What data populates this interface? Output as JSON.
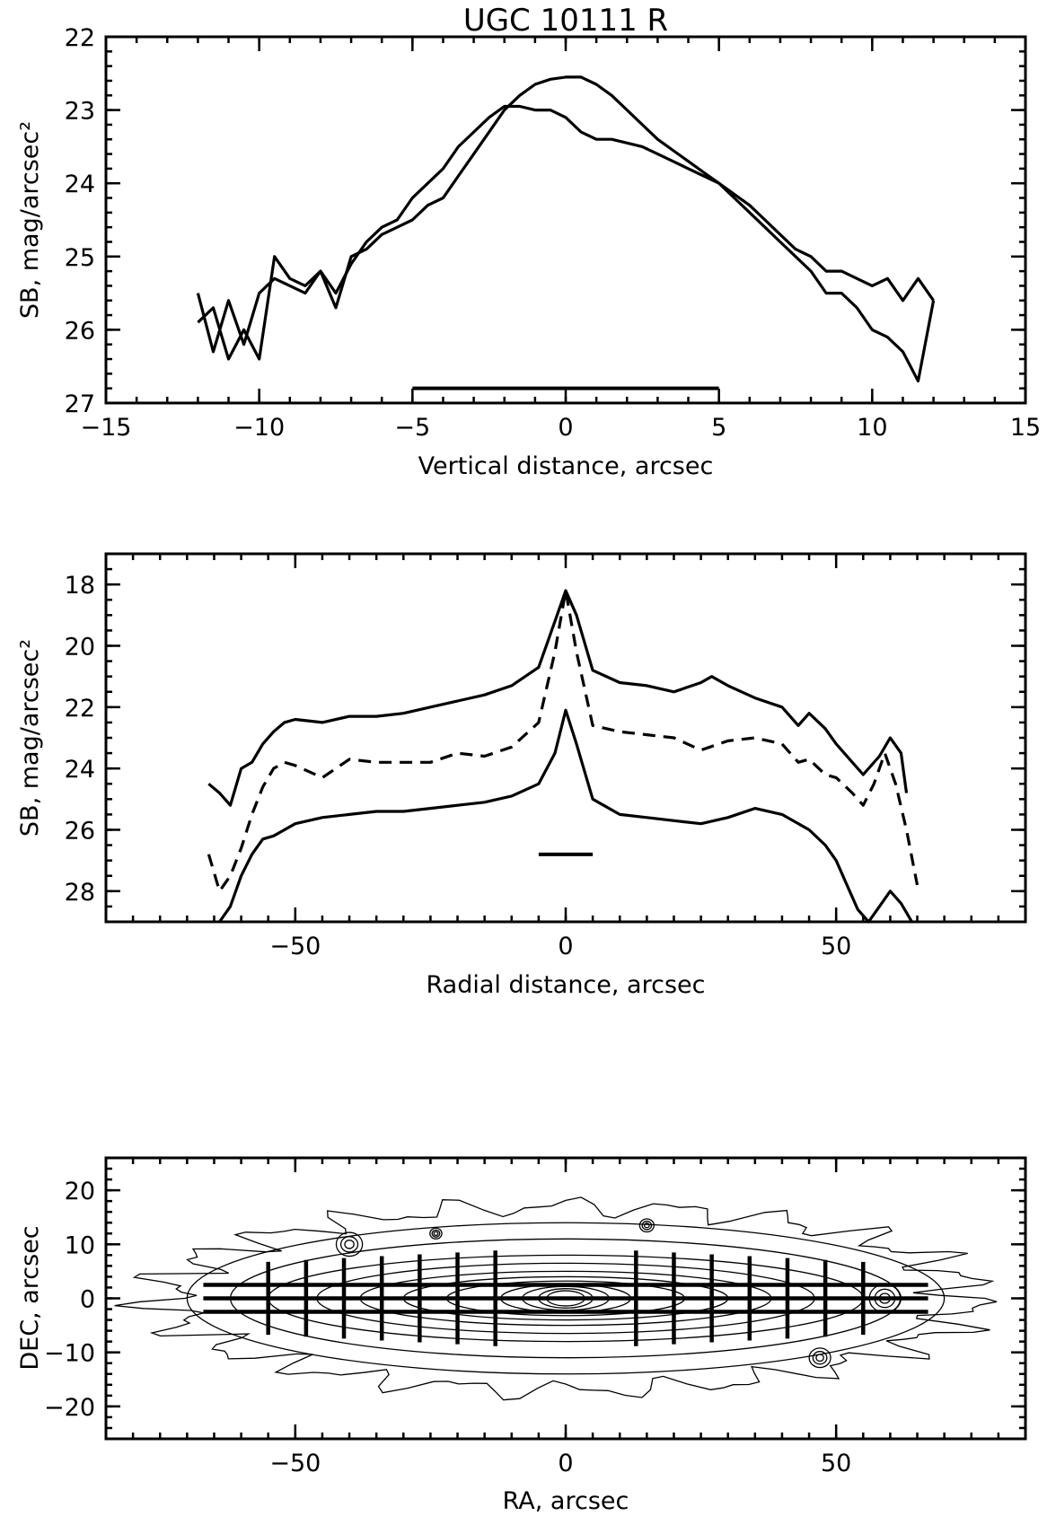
{
  "figure": {
    "title": "UGC 10111 R"
  },
  "chart_data": [
    {
      "type": "line",
      "xlabel": "Vertical distance, arcsec",
      "ylabel": "SB, mag/arcsec²",
      "xlim": [
        -15,
        15
      ],
      "ylim": [
        27,
        22
      ],
      "y_inverted": true,
      "xticks": [
        -15,
        -10,
        -5,
        0,
        5,
        10,
        15
      ],
      "yticks": [
        22,
        23,
        24,
        25,
        26,
        27
      ],
      "series": [
        {
          "style": "solid",
          "x": [
            -12.0,
            -11.5,
            -11.0,
            -10.5,
            -10.0,
            -9.5,
            -9.0,
            -8.5,
            -8.0,
            -7.5,
            -7.0,
            -6.5,
            -6.0,
            -5.5,
            -5.0,
            -4.5,
            -4.0,
            -3.5,
            -3.0,
            -2.5,
            -2.0,
            -1.5,
            -1.0,
            -0.5,
            0.0,
            0.5,
            1.0,
            1.5,
            2.0,
            2.5,
            3.0,
            3.5,
            4.0,
            4.5,
            5.0,
            5.5,
            6.0,
            6.5,
            7.0,
            7.5,
            8.0,
            8.5,
            9.0,
            9.5,
            10.0,
            10.5,
            11.0,
            11.5,
            12.0
          ],
          "y": [
            25.5,
            26.3,
            25.6,
            26.2,
            25.5,
            25.3,
            25.4,
            25.5,
            25.2,
            25.5,
            25.1,
            24.8,
            24.6,
            24.5,
            24.2,
            24.0,
            23.8,
            23.5,
            23.3,
            23.1,
            22.95,
            22.95,
            23.0,
            23.0,
            23.1,
            23.3,
            23.4,
            23.4,
            23.45,
            23.5,
            23.6,
            23.7,
            23.8,
            23.9,
            24.0,
            24.15,
            24.3,
            24.5,
            24.7,
            24.9,
            25.0,
            25.2,
            25.2,
            25.3,
            25.4,
            25.3,
            25.6,
            25.3,
            25.6
          ]
        },
        {
          "style": "solid",
          "x": [
            -12.0,
            -11.5,
            -11.0,
            -10.5,
            -10.0,
            -9.5,
            -9.0,
            -8.5,
            -8.0,
            -7.5,
            -7.0,
            -6.5,
            -6.0,
            -5.5,
            -5.0,
            -4.5,
            -4.0,
            -3.5,
            -3.0,
            -2.5,
            -2.0,
            -1.5,
            -1.0,
            -0.5,
            0.0,
            0.5,
            1.0,
            1.5,
            2.0,
            2.5,
            3.0,
            3.5,
            4.0,
            4.5,
            5.0,
            5.5,
            6.0,
            6.5,
            7.0,
            7.5,
            8.0,
            8.5,
            9.0,
            9.5,
            10.0,
            10.5,
            11.0,
            11.5,
            12.0
          ],
          "y": [
            25.9,
            25.7,
            26.4,
            26.0,
            26.4,
            25.0,
            25.3,
            25.4,
            25.2,
            25.7,
            25.0,
            24.9,
            24.7,
            24.6,
            24.5,
            24.3,
            24.2,
            23.9,
            23.6,
            23.3,
            23.0,
            22.8,
            22.65,
            22.58,
            22.55,
            22.55,
            22.65,
            22.8,
            23.0,
            23.2,
            23.4,
            23.55,
            23.7,
            23.85,
            24.0,
            24.2,
            24.4,
            24.6,
            24.8,
            25.0,
            25.2,
            25.5,
            25.5,
            25.7,
            26.0,
            26.1,
            26.3,
            26.7,
            25.6
          ]
        }
      ],
      "annotations": [
        {
          "kind": "horizontal-bar",
          "x": [
            -5,
            5
          ],
          "y": 26.8
        }
      ]
    },
    {
      "type": "line",
      "xlabel": "Radial distance, arcsec",
      "ylabel": "SB, mag/arcsec²",
      "xlim": [
        -85,
        85
      ],
      "ylim": [
        29,
        17
      ],
      "y_inverted": true,
      "xticks": [
        -50,
        0,
        50
      ],
      "yticks": [
        18,
        20,
        22,
        24,
        26,
        28
      ],
      "series": [
        {
          "style": "solid",
          "x": [
            -66,
            -64,
            -62,
            -60,
            -58,
            -56,
            -54,
            -52,
            -50,
            -45,
            -40,
            -35,
            -30,
            -25,
            -20,
            -15,
            -10,
            -5,
            -2,
            0,
            2,
            5,
            10,
            15,
            20,
            25,
            27,
            30,
            35,
            40,
            43,
            45,
            48,
            50,
            53,
            55,
            58,
            60,
            62,
            63
          ],
          "y": [
            24.5,
            24.8,
            25.2,
            24.0,
            23.8,
            23.2,
            22.8,
            22.5,
            22.4,
            22.5,
            22.3,
            22.3,
            22.2,
            22.0,
            21.8,
            21.6,
            21.3,
            20.7,
            19.2,
            18.2,
            19.0,
            20.8,
            21.2,
            21.3,
            21.5,
            21.2,
            21.0,
            21.3,
            21.7,
            22.0,
            22.6,
            22.2,
            22.7,
            23.2,
            23.8,
            24.2,
            23.6,
            23.0,
            23.5,
            24.8
          ]
        },
        {
          "style": "dashed",
          "x": [
            -66,
            -64,
            -62,
            -60,
            -58,
            -56,
            -54,
            -52,
            -50,
            -45,
            -40,
            -35,
            -30,
            -25,
            -20,
            -15,
            -10,
            -5,
            -2,
            0,
            2,
            5,
            10,
            15,
            20,
            25,
            30,
            35,
            40,
            43,
            45,
            48,
            50,
            53,
            55,
            57,
            59,
            61,
            63,
            65
          ],
          "y": [
            26.8,
            28.0,
            27.5,
            26.6,
            25.5,
            24.6,
            24.0,
            23.8,
            23.9,
            24.3,
            23.7,
            23.8,
            23.8,
            23.8,
            23.5,
            23.6,
            23.3,
            22.5,
            20.2,
            18.2,
            20.2,
            22.6,
            22.8,
            22.9,
            23.0,
            23.4,
            23.1,
            23.0,
            23.2,
            23.8,
            23.7,
            24.2,
            24.3,
            24.8,
            25.2,
            24.5,
            23.5,
            24.5,
            26.0,
            27.8
          ]
        },
        {
          "style": "solid",
          "x": [
            -64,
            -62,
            -60,
            -58,
            -56,
            -54,
            -52,
            -50,
            -45,
            -40,
            -35,
            -30,
            -25,
            -20,
            -15,
            -10,
            -5,
            -2,
            0,
            2,
            5,
            10,
            15,
            20,
            25,
            30,
            35,
            40,
            45,
            48,
            50,
            52,
            54,
            56,
            58,
            60,
            62,
            64
          ],
          "y": [
            29.0,
            28.5,
            27.5,
            26.8,
            26.3,
            26.2,
            26.0,
            25.8,
            25.6,
            25.5,
            25.4,
            25.4,
            25.3,
            25.2,
            25.1,
            24.9,
            24.5,
            23.5,
            22.1,
            23.2,
            25.0,
            25.5,
            25.6,
            25.7,
            25.8,
            25.6,
            25.3,
            25.5,
            26.0,
            26.5,
            27.0,
            27.8,
            28.6,
            29.0,
            28.5,
            28.0,
            28.4,
            29.0
          ]
        }
      ],
      "annotations": [
        {
          "kind": "horizontal-bar",
          "x": [
            -5,
            5
          ],
          "y": 26.8
        }
      ]
    },
    {
      "type": "contour",
      "xlabel": "RA, arcsec",
      "ylabel": "DEC, arcsec",
      "xlim": [
        -85,
        85
      ],
      "ylim": [
        -26,
        26
      ],
      "xticks": [
        -50,
        0,
        50
      ],
      "yticks": [
        -20,
        -10,
        0,
        10,
        20
      ],
      "horizontal_slits_dec": [
        2.5,
        0,
        -2.5
      ],
      "horizontal_slits_ra": [
        -67,
        67
      ],
      "vertical_slits_ra": [
        -55,
        -48,
        -41,
        -34,
        -27,
        -20,
        -13,
        13,
        20,
        27,
        34,
        41,
        48,
        55
      ]
    }
  ]
}
